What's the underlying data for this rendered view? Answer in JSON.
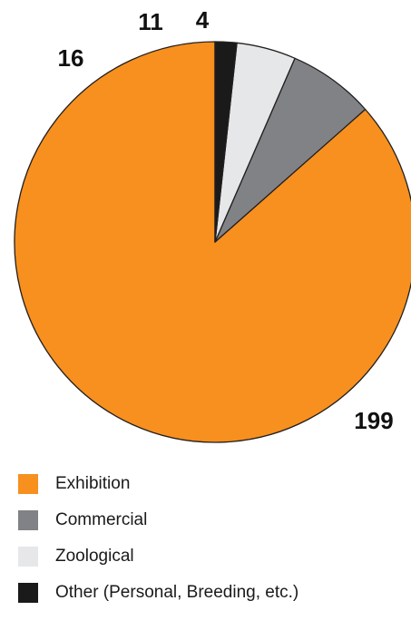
{
  "chart_data": {
    "type": "pie",
    "slices": [
      {
        "name": "Exhibition",
        "value": 199,
        "label": "199",
        "color": "#f7901e"
      },
      {
        "name": "Commercial",
        "value": 16,
        "label": "16",
        "color": "#808285"
      },
      {
        "name": "Zoological",
        "value": 11,
        "label": "11",
        "color": "#e6e7e8"
      },
      {
        "name": "Other (Personal, Breeding, etc.)",
        "value": 4,
        "label": "4",
        "color": "#1a1a1a"
      }
    ],
    "legend_placement": "bottom-left",
    "start_angle": "top",
    "direction": "counter-clockwise"
  }
}
